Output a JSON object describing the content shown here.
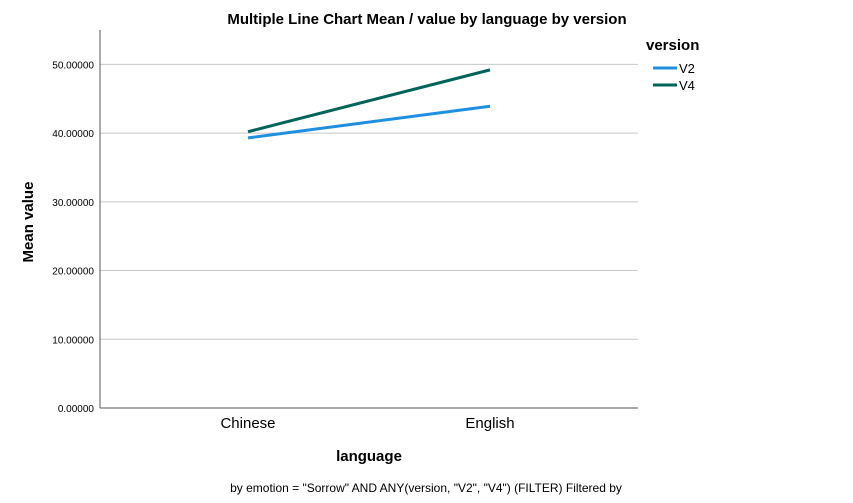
{
  "chart_data": {
    "type": "line",
    "title": "Multiple Line Chart Mean /  value by language by version",
    "xlabel": "language",
    "ylabel": "Mean value",
    "categories": [
      "Chinese",
      "English"
    ],
    "ylim": [
      0,
      55
    ],
    "yticks": [
      "0.00000",
      "10.00000",
      "20.00000",
      "30.00000",
      "40.00000",
      "50.00000"
    ],
    "ytick_values": [
      0,
      10,
      20,
      30,
      40,
      50
    ],
    "grid": true,
    "legend_title": "version",
    "legend_position": "top-right",
    "series": [
      {
        "name": "V2",
        "values": [
          39.3,
          43.9
        ],
        "color": "#1f8fdf"
      },
      {
        "name": "V4",
        "values": [
          40.2,
          49.2
        ],
        "color": "#00645b"
      }
    ],
    "footnote": "by emotion = \"Sorrow\" AND ANY(version, \"V2\", \"V4\") (FILTER) Filtered by"
  }
}
